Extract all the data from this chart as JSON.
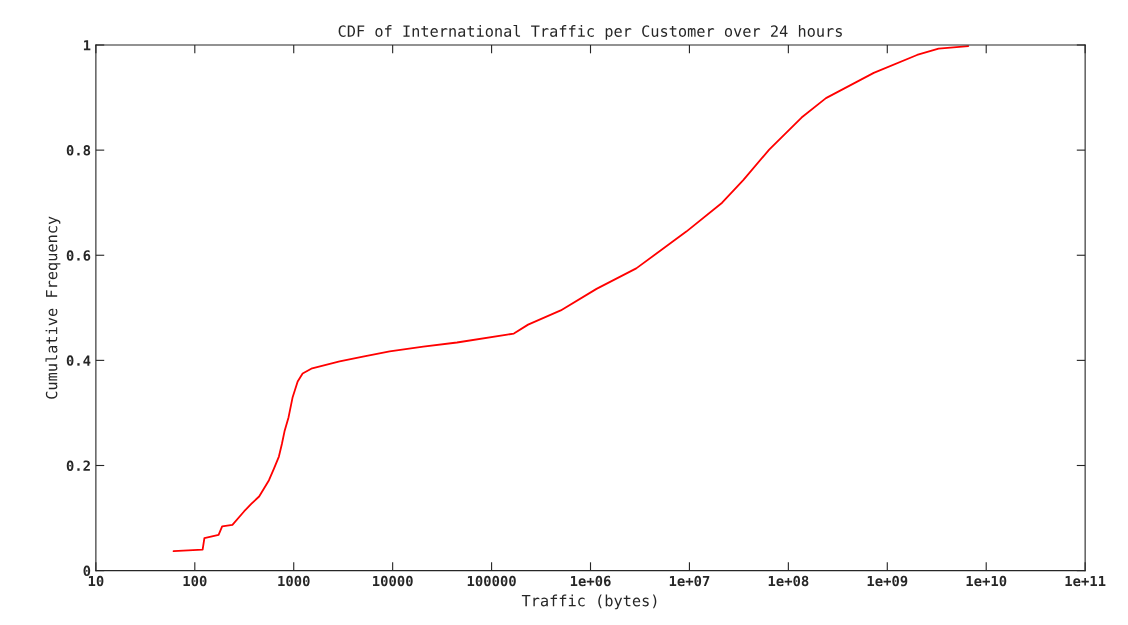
{
  "chart_data": {
    "type": "line",
    "title": "CDF of International Traffic per Customer over 24 hours",
    "xlabel": "Traffic (bytes)",
    "ylabel": "Cumulative Frequency",
    "log": "x",
    "xlim": [
      10,
      100000000000
    ],
    "ylim": [
      0,
      1
    ],
    "xticks": [
      10,
      100,
      1000,
      10000,
      100000,
      {
        "value": 1000000,
        "label": "1e+06"
      },
      {
        "value": 10000000,
        "label": "1e+07"
      },
      {
        "value": 100000000,
        "label": "1e+08"
      },
      {
        "value": 1000000000,
        "label": "1e+09"
      },
      {
        "value": 10000000000,
        "label": "1e+10"
      },
      {
        "value": 100000000000,
        "label": "1e+11"
      }
    ],
    "yticks": [
      0,
      {
        "value": 0.2,
        "label": "0.2"
      },
      {
        "value": 0.4,
        "label": "0.4"
      },
      {
        "value": 0.6,
        "label": "0.6"
      },
      {
        "value": 0.8,
        "label": "0.8"
      },
      1
    ],
    "grid": false,
    "line_style": "solid",
    "series": [
      {
        "color": "#ff0000",
        "x": [
          61,
          120,
          125,
          174,
          189,
          240,
          316,
          372,
          447,
          562,
          631,
          708,
          759,
          807,
          887,
          975,
          1096,
          1230,
          1535,
          2910,
          5010,
          9330,
          20400,
          44700,
          144000,
          168000,
          234000,
          500000,
          1150000,
          2900000,
          9300000,
          21400000,
          35000000,
          64000000,
          136000000,
          240000000,
          730000000,
          2000000000,
          3300000000,
          6600000000
        ],
        "values": [
          0.037,
          0.04,
          0.062,
          0.068,
          0.084,
          0.087,
          0.113,
          0.127,
          0.141,
          0.172,
          0.194,
          0.217,
          0.241,
          0.265,
          0.292,
          0.33,
          0.36,
          0.375,
          0.385,
          0.398,
          0.407,
          0.417,
          0.426,
          0.434,
          0.449,
          0.451,
          0.468,
          0.495,
          0.536,
          0.575,
          0.645,
          0.7,
          0.743,
          0.801,
          0.862,
          0.899,
          0.947,
          0.981,
          0.993,
          0.998
        ]
      }
    ]
  }
}
